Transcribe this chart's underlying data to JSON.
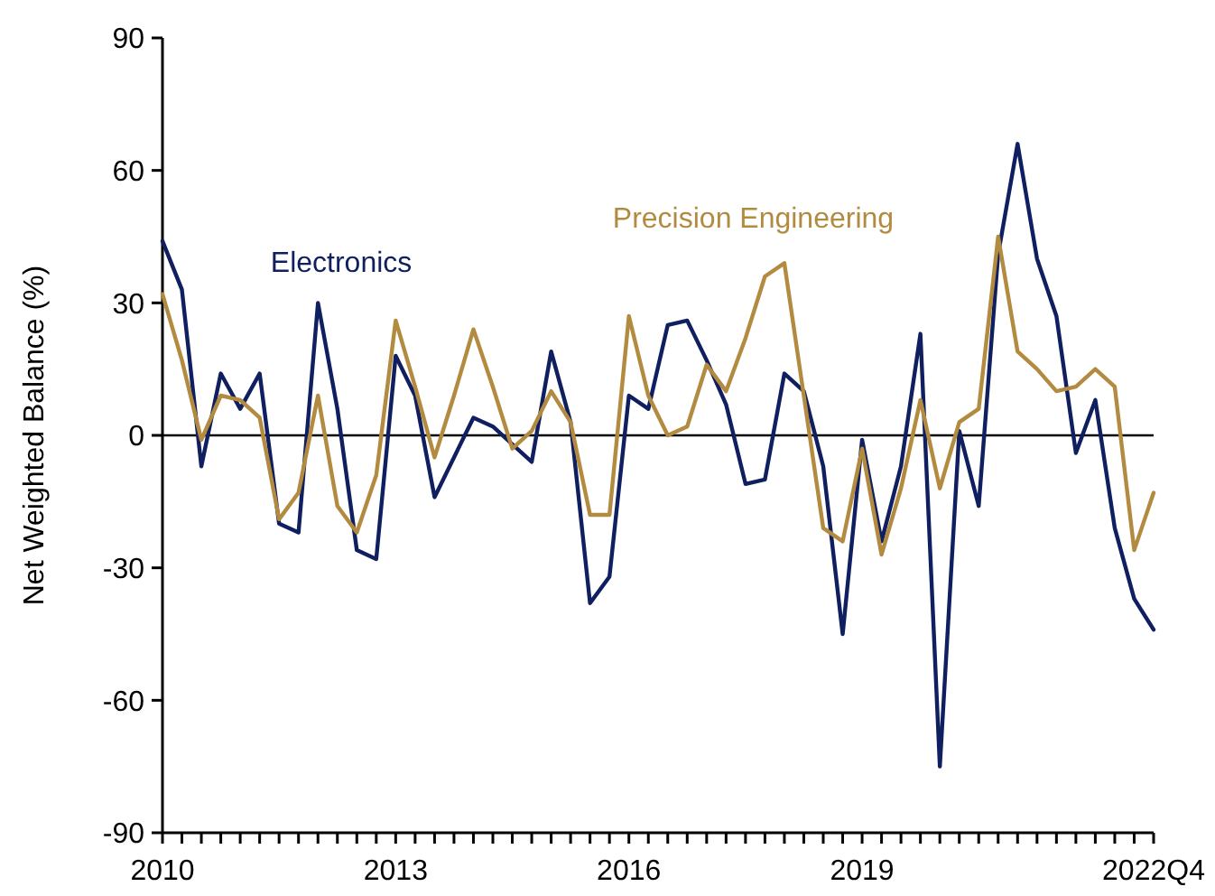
{
  "chart_data": {
    "type": "line",
    "ylabel": "Net Weighted Balance (%)",
    "x": [
      2010,
      2010.25,
      2010.5,
      2010.75,
      2011,
      2011.25,
      2011.5,
      2011.75,
      2012,
      2012.25,
      2012.5,
      2012.75,
      2013,
      2013.25,
      2013.5,
      2013.75,
      2014,
      2014.25,
      2014.5,
      2014.75,
      2015,
      2015.25,
      2015.5,
      2015.75,
      2016,
      2016.25,
      2016.5,
      2016.75,
      2017,
      2017.25,
      2017.5,
      2017.75,
      2018,
      2018.25,
      2018.5,
      2018.75,
      2019,
      2019.25,
      2019.5,
      2019.75,
      2020,
      2020.25,
      2020.5,
      2020.75,
      2021,
      2021.25,
      2021.5,
      2021.75,
      2022,
      2022.25,
      2022.5,
      2022.75
    ],
    "series": [
      {
        "name": "Electronics",
        "color": "#0f1f5f",
        "values": [
          44,
          33,
          -7,
          14,
          6,
          14,
          -20,
          -22,
          30,
          6,
          -26,
          -28,
          18,
          9,
          -14,
          -5,
          4,
          2,
          -2,
          -6,
          19,
          3,
          -38,
          -32,
          9,
          6,
          25,
          26,
          17,
          7,
          -11,
          -10,
          14,
          10,
          -7,
          -45,
          -1,
          -24,
          -7,
          23,
          -75,
          1,
          -16,
          41,
          66,
          40,
          27,
          -4,
          8,
          -21,
          -37,
          -44
        ]
      },
      {
        "name": "Precision Engineering",
        "color": "#b38b40",
        "values": [
          32,
          17,
          -1,
          9,
          8,
          4,
          -19,
          -13,
          9,
          -16,
          -22,
          -9,
          26,
          11,
          -5,
          9,
          24,
          11,
          -3,
          1,
          10,
          3,
          -18,
          -18,
          27,
          9,
          0,
          2,
          16,
          10,
          22,
          36,
          39,
          9,
          -21,
          -24,
          -3,
          -27,
          -12,
          8,
          -12,
          3,
          6,
          45,
          19,
          15,
          10,
          11,
          15,
          11,
          -26,
          -13
        ]
      }
    ],
    "xlim": [
      2010,
      2022.75
    ],
    "xticks": [
      {
        "value": 2010,
        "label": "2010"
      },
      {
        "value": 2010.25,
        "label": null
      },
      {
        "value": 2010.5,
        "label": null
      },
      {
        "value": 2010.75,
        "label": null
      },
      {
        "value": 2011,
        "label": null
      },
      {
        "value": 2011.25,
        "label": null
      },
      {
        "value": 2011.5,
        "label": null
      },
      {
        "value": 2011.75,
        "label": null
      },
      {
        "value": 2012,
        "label": null
      },
      {
        "value": 2012.25,
        "label": null
      },
      {
        "value": 2012.5,
        "label": null
      },
      {
        "value": 2012.75,
        "label": null
      },
      {
        "value": 2013,
        "label": "2013"
      },
      {
        "value": 2013.25,
        "label": null
      },
      {
        "value": 2013.5,
        "label": null
      },
      {
        "value": 2013.75,
        "label": null
      },
      {
        "value": 2014,
        "label": null
      },
      {
        "value": 2014.25,
        "label": null
      },
      {
        "value": 2014.5,
        "label": null
      },
      {
        "value": 2014.75,
        "label": null
      },
      {
        "value": 2015,
        "label": null
      },
      {
        "value": 2015.25,
        "label": null
      },
      {
        "value": 2015.5,
        "label": null
      },
      {
        "value": 2015.75,
        "label": null
      },
      {
        "value": 2016,
        "label": "2016"
      },
      {
        "value": 2016.25,
        "label": null
      },
      {
        "value": 2016.5,
        "label": null
      },
      {
        "value": 2016.75,
        "label": null
      },
      {
        "value": 2017,
        "label": null
      },
      {
        "value": 2017.25,
        "label": null
      },
      {
        "value": 2017.5,
        "label": null
      },
      {
        "value": 2017.75,
        "label": null
      },
      {
        "value": 2018,
        "label": null
      },
      {
        "value": 2018.25,
        "label": null
      },
      {
        "value": 2018.5,
        "label": null
      },
      {
        "value": 2018.75,
        "label": null
      },
      {
        "value": 2019,
        "label": "2019"
      },
      {
        "value": 2019.25,
        "label": null
      },
      {
        "value": 2019.5,
        "label": null
      },
      {
        "value": 2019.75,
        "label": null
      },
      {
        "value": 2020,
        "label": null
      },
      {
        "value": 2020.25,
        "label": null
      },
      {
        "value": 2020.5,
        "label": null
      },
      {
        "value": 2020.75,
        "label": null
      },
      {
        "value": 2021,
        "label": null
      },
      {
        "value": 2021.25,
        "label": null
      },
      {
        "value": 2021.5,
        "label": null
      },
      {
        "value": 2021.75,
        "label": null
      },
      {
        "value": 2022,
        "label": null
      },
      {
        "value": 2022.25,
        "label": null
      },
      {
        "value": 2022.5,
        "label": null
      },
      {
        "value": 2022.75,
        "label": "2022Q4"
      }
    ],
    "ylim": [
      -90,
      90
    ],
    "yticks": [
      -90,
      -60,
      -30,
      0,
      30,
      60,
      90
    ],
    "ref_lines": [
      {
        "axis": "y",
        "value": 0,
        "color": "#000000"
      }
    ],
    "grid": false,
    "marker": "none",
    "line_style": "solid"
  }
}
